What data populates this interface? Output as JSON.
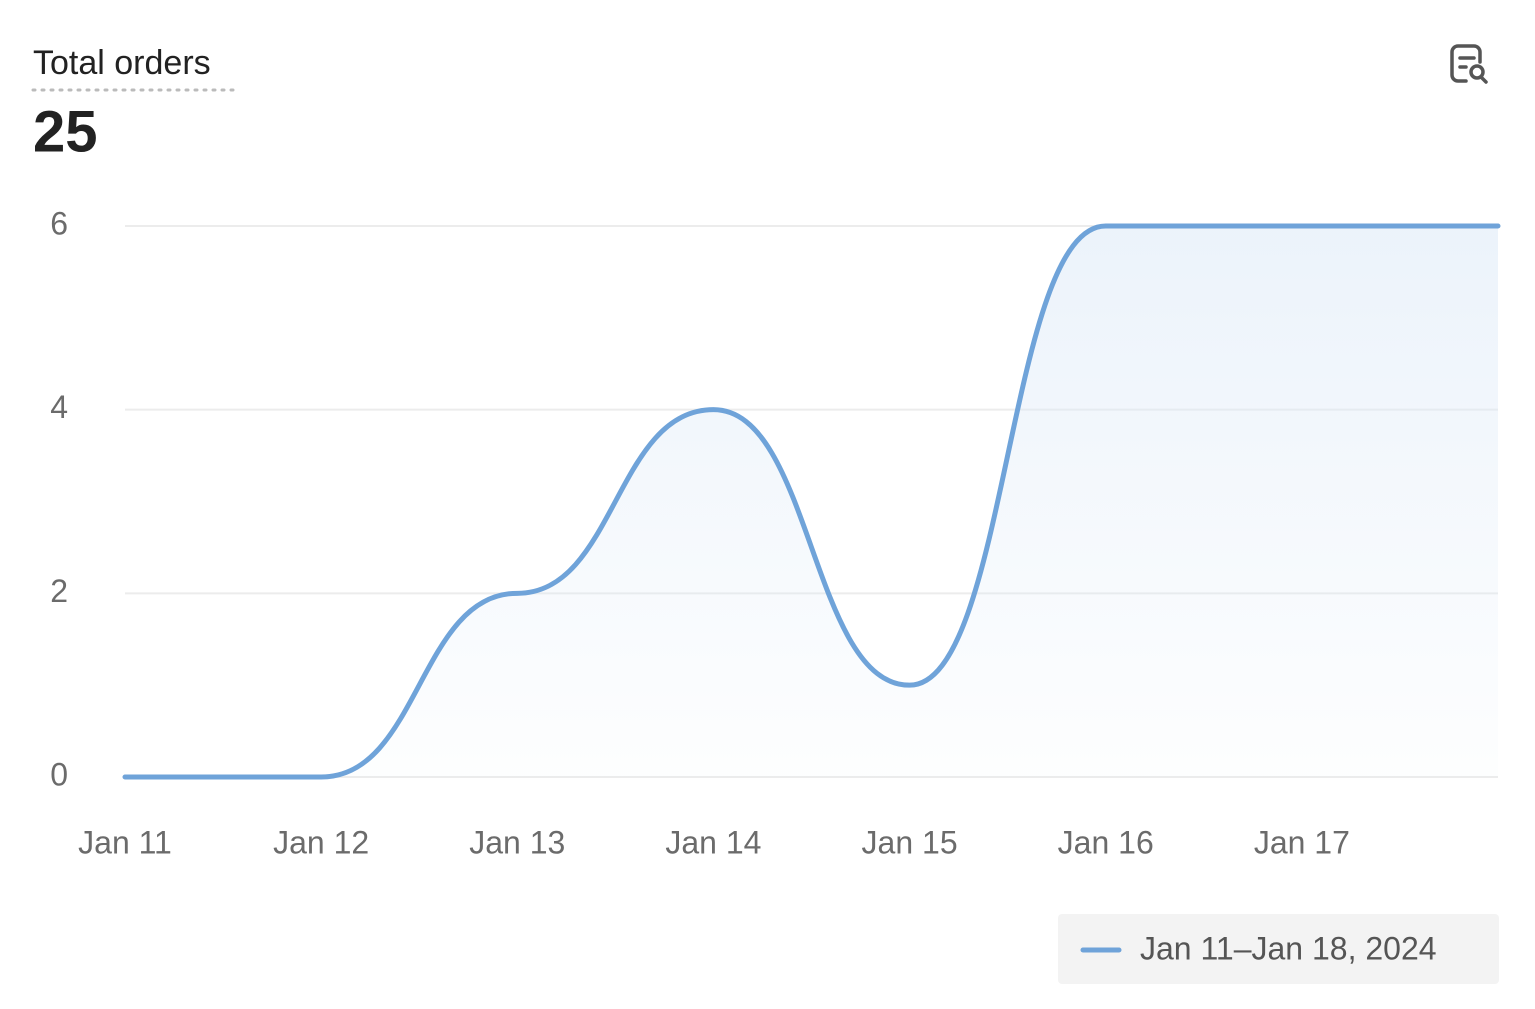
{
  "chart_data": {
    "type": "line",
    "title": "Total orders",
    "summary_value": 25,
    "categories": [
      "Jan 11",
      "Jan 12",
      "Jan 13",
      "Jan 14",
      "Jan 15",
      "Jan 16",
      "Jan 17",
      null
    ],
    "series": [
      {
        "name": "Jan 11–Jan 18, 2024",
        "color": "#6fa3d9",
        "values": [
          0,
          0,
          2,
          4,
          1,
          6,
          6,
          6
        ]
      }
    ],
    "ylim": [
      0,
      6
    ],
    "yticks": [
      0,
      2,
      4,
      6
    ],
    "grid": true,
    "legend": "bottom-right"
  }
}
